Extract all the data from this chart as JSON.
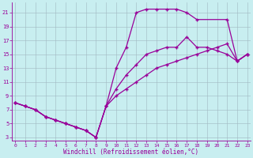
{
  "xlabel": "Windchill (Refroidissement éolien,°C)",
  "bg_color": "#c8eef0",
  "line_color": "#990099",
  "xlim": [
    -0.3,
    23.3
  ],
  "ylim": [
    2.5,
    22.5
  ],
  "xticks": [
    0,
    1,
    2,
    3,
    4,
    5,
    6,
    7,
    8,
    9,
    10,
    11,
    12,
    13,
    14,
    15,
    16,
    17,
    18,
    19,
    20,
    21,
    22,
    23
  ],
  "yticks": [
    3,
    5,
    7,
    9,
    11,
    13,
    15,
    17,
    19,
    21
  ],
  "grid_color": "#a0b8c0",
  "series": [
    {
      "x": [
        0,
        1,
        2,
        3,
        4,
        5,
        6,
        7,
        8,
        9,
        10,
        11,
        12,
        13,
        14,
        15,
        16,
        17,
        18,
        19,
        20,
        21,
        22,
        23
      ],
      "y": [
        8,
        7.5,
        7,
        6,
        5.5,
        5,
        4.5,
        4,
        3,
        7.5,
        9,
        10,
        11,
        12,
        13,
        13.5,
        14,
        14.5,
        15,
        15.5,
        16,
        16.5,
        14,
        15
      ]
    },
    {
      "x": [
        0,
        1,
        2,
        3,
        4,
        5,
        6,
        7,
        8,
        9,
        10,
        11,
        12,
        13,
        14,
        15,
        16,
        17,
        18,
        19,
        20,
        21,
        22,
        23
      ],
      "y": [
        8,
        7.5,
        7,
        6,
        5.5,
        5,
        4.5,
        4,
        3,
        7.5,
        10,
        12,
        13.5,
        15,
        15.5,
        16,
        16,
        17.5,
        16,
        16,
        15.5,
        15,
        14,
        15
      ]
    },
    {
      "x": [
        0,
        1,
        2,
        3,
        4,
        5,
        6,
        7,
        8,
        9,
        10,
        11,
        12,
        13,
        14,
        15,
        16,
        17,
        18,
        21,
        22,
        23
      ],
      "y": [
        8,
        7.5,
        7,
        6,
        5.5,
        5,
        4.5,
        4,
        3,
        7.5,
        13,
        16,
        21,
        21.5,
        21.5,
        21.5,
        21.5,
        21,
        20,
        20,
        14,
        15
      ]
    }
  ]
}
